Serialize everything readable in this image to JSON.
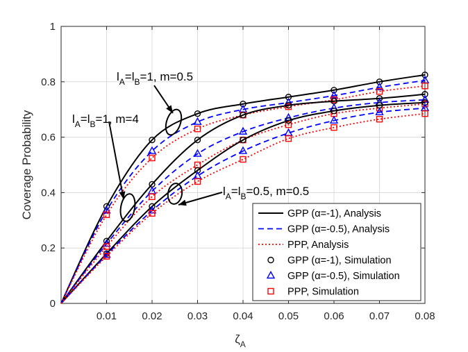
{
  "chart_data": {
    "type": "line",
    "xlabel": "ζ",
    "xlabel_sub": "A",
    "ylabel": "Coverage Probability",
    "xlim": [
      0,
      0.08
    ],
    "ylim": [
      0,
      1
    ],
    "xticks": [
      0.01,
      0.02,
      0.03,
      0.04,
      0.05,
      0.06,
      0.07,
      0.08
    ],
    "xtick_labels": [
      "0.01",
      "0.02",
      "0.03",
      "0.04",
      "0.05",
      "0.06",
      "0.07",
      "0.08"
    ],
    "yticks": [
      0,
      0.2,
      0.4,
      0.6,
      0.8,
      1
    ],
    "ytick_labels": [
      "0",
      "0.2",
      "0.4",
      "0.6",
      "0.8",
      "1"
    ],
    "grid": true,
    "legend_position": "bottom-right",
    "legend": [
      {
        "label": "GPP (α=-1), Analysis",
        "color": "#000000",
        "style": "solid",
        "marker": "none"
      },
      {
        "label": "GPP (α=-0.5), Analysis",
        "color": "#0000ff",
        "style": "dashed",
        "marker": "none"
      },
      {
        "label": "PPP, Analysis",
        "color": "#ff0000",
        "style": "dotted",
        "marker": "none"
      },
      {
        "label": "GPP (α=-1), Simulation",
        "color": "#000000",
        "style": "none",
        "marker": "circle"
      },
      {
        "label": "GPP (α=-0.5), Simulation",
        "color": "#0000ff",
        "style": "none",
        "marker": "triangle"
      },
      {
        "label": "PPP, Simulation",
        "color": "#ff0000",
        "style": "none",
        "marker": "square"
      }
    ],
    "x": [
      0.01,
      0.02,
      0.03,
      0.04,
      0.05,
      0.06,
      0.07,
      0.08
    ],
    "groups": [
      {
        "annotation": "l_A=l_B=1, m=0.5",
        "series": [
          {
            "model": "GPP (α=-1)",
            "color": "#000000",
            "values": [
              0.35,
              0.59,
              0.685,
              0.72,
              0.745,
              0.77,
              0.8,
              0.825
            ]
          },
          {
            "model": "GPP (α=-0.5)",
            "color": "#0000ff",
            "values": [
              0.335,
              0.55,
              0.655,
              0.7,
              0.725,
              0.75,
              0.78,
              0.805
            ]
          },
          {
            "model": "PPP",
            "color": "#ff0000",
            "values": [
              0.32,
              0.525,
              0.63,
              0.68,
              0.71,
              0.735,
              0.765,
              0.785
            ]
          }
        ]
      },
      {
        "annotation": "l_A=l_B=1, m=4",
        "series": [
          {
            "model": "GPP (α=-1)",
            "color": "#000000",
            "values": [
              0.225,
              0.43,
              0.59,
              0.68,
              0.715,
              0.73,
              0.74,
              0.755
            ]
          },
          {
            "model": "GPP (α=-0.5)",
            "color": "#0000ff",
            "values": [
              0.215,
              0.405,
              0.54,
              0.62,
              0.67,
              0.705,
              0.725,
              0.735
            ]
          },
          {
            "model": "PPP",
            "color": "#ff0000",
            "values": [
              0.205,
              0.385,
              0.5,
              0.59,
              0.645,
              0.685,
              0.705,
              0.72
            ]
          }
        ]
      },
      {
        "annotation": "l_A=l_B=0.5, m=0.5",
        "series": [
          {
            "model": "GPP (α=-1)",
            "color": "#000000",
            "values": [
              0.18,
              0.35,
              0.48,
              0.59,
              0.66,
              0.695,
              0.715,
              0.725
            ]
          },
          {
            "model": "GPP (α=-0.5)",
            "color": "#0000ff",
            "values": [
              0.175,
              0.335,
              0.46,
              0.55,
              0.615,
              0.66,
              0.69,
              0.705
            ]
          },
          {
            "model": "PPP",
            "color": "#ff0000",
            "values": [
              0.17,
              0.325,
              0.44,
              0.52,
              0.595,
              0.635,
              0.665,
              0.685
            ]
          }
        ]
      }
    ],
    "annotations": [
      {
        "main": "l",
        "sub1": "A",
        "eq1": "=l",
        "sub2": "B",
        "tail": "=1, m=0.5"
      },
      {
        "main": "l",
        "sub1": "A",
        "eq1": "=l",
        "sub2": "B",
        "tail": "=1, m=4"
      },
      {
        "main": "l",
        "sub1": "A",
        "eq1": "=l",
        "sub2": "B",
        "tail": "=0.5, m=0.5"
      }
    ]
  }
}
